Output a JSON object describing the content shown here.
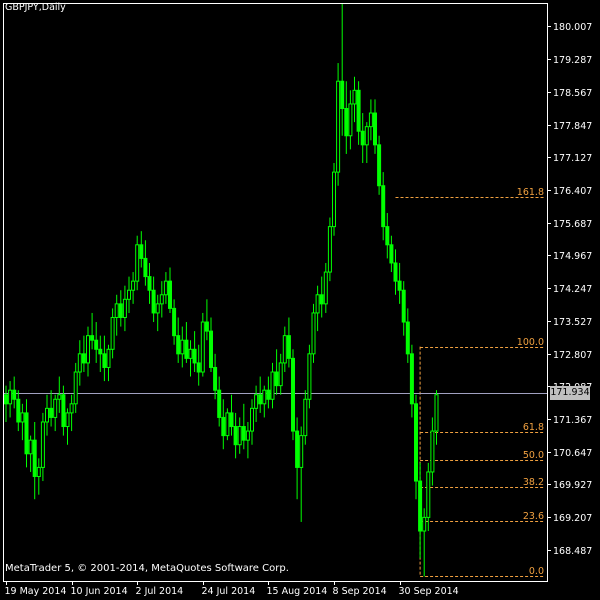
{
  "window": {
    "symbol_title": "GBPJPY,Daily",
    "copyright": "MetaTrader 5, © 2001-2014, MetaQuotes Software Corp.",
    "current_price": "171.934"
  },
  "colors": {
    "background": "#000000",
    "frame": "#ffffff",
    "candles": "#00ff00",
    "fibo": "#f0a040",
    "price_line": "#a0a0c0",
    "price_box_bg": "#c0c0c0"
  },
  "chart_data": {
    "type": "candlestick",
    "title": "GBPJPY,Daily",
    "ylim": [
      167.8,
      180.5
    ],
    "y_ticks": [
      "180.007",
      "179.287",
      "178.567",
      "177.847",
      "177.127",
      "176.407",
      "175.687",
      "174.967",
      "174.247",
      "173.527",
      "172.807",
      "172.087",
      "171.367",
      "170.647",
      "169.927",
      "169.207",
      "168.487"
    ],
    "y_tick_values": [
      180.007,
      179.287,
      178.567,
      177.847,
      177.127,
      176.407,
      175.687,
      174.967,
      174.247,
      173.527,
      172.807,
      172.087,
      171.367,
      170.647,
      169.927,
      169.207,
      168.487
    ],
    "x_labels": [
      "19 May 2014",
      "10 Jun 2014",
      "2 Jul 2014",
      "24 Jul 2014",
      "15 Aug 2014",
      "8 Sep 2014",
      "30 Sep 2014"
    ],
    "x_label_index": [
      0,
      16,
      32,
      48,
      64,
      80,
      96
    ],
    "current_price": 171.934,
    "fibonacci": {
      "levels": [
        {
          "label": "161.8",
          "price": 176.26,
          "start_index": 95
        },
        {
          "label": "100.0",
          "price": 172.96,
          "start_index": 101
        },
        {
          "label": "61.8",
          "price": 171.07,
          "start_index": 101
        },
        {
          "label": "50.0",
          "price": 170.47,
          "start_index": 101
        },
        {
          "label": "38.2",
          "price": 169.86,
          "start_index": 101
        },
        {
          "label": "23.6",
          "price": 169.12,
          "start_index": 101
        },
        {
          "label": "0.0",
          "price": 167.92,
          "start_index": 101
        }
      ]
    },
    "candles": [
      [
        171.9,
        172.1,
        171.3,
        171.7
      ],
      [
        171.7,
        172.2,
        171.4,
        172.0
      ],
      [
        172.0,
        172.3,
        171.6,
        171.8
      ],
      [
        171.8,
        172.0,
        171.1,
        171.3
      ],
      [
        171.3,
        171.7,
        170.9,
        171.5
      ],
      [
        171.5,
        171.8,
        170.3,
        170.6
      ],
      [
        170.6,
        171.0,
        170.2,
        170.9
      ],
      [
        170.9,
        171.3,
        169.6,
        170.1
      ],
      [
        170.1,
        170.5,
        169.7,
        170.3
      ],
      [
        170.3,
        171.5,
        170.0,
        171.3
      ],
      [
        171.3,
        171.9,
        171.0,
        171.6
      ],
      [
        171.6,
        172.0,
        171.2,
        171.4
      ],
      [
        171.4,
        171.9,
        171.1,
        171.8
      ],
      [
        171.8,
        172.3,
        171.5,
        171.9
      ],
      [
        171.9,
        172.1,
        171.0,
        171.2
      ],
      [
        171.2,
        171.6,
        170.8,
        171.5
      ],
      [
        171.5,
        171.9,
        171.1,
        171.7
      ],
      [
        171.7,
        172.6,
        171.5,
        172.4
      ],
      [
        172.4,
        173.1,
        172.1,
        172.8
      ],
      [
        172.8,
        173.2,
        172.4,
        172.6
      ],
      [
        172.6,
        173.4,
        172.3,
        173.2
      ],
      [
        173.2,
        173.7,
        172.9,
        173.1
      ],
      [
        173.1,
        173.5,
        172.6,
        172.9
      ],
      [
        172.9,
        173.2,
        172.4,
        172.8
      ],
      [
        172.8,
        173.2,
        172.2,
        172.5
      ],
      [
        172.5,
        173.0,
        172.2,
        172.9
      ],
      [
        172.9,
        173.8,
        172.7,
        173.6
      ],
      [
        173.6,
        174.1,
        173.2,
        173.9
      ],
      [
        173.9,
        174.2,
        173.4,
        173.6
      ],
      [
        173.6,
        174.3,
        173.3,
        174.0
      ],
      [
        174.0,
        174.5,
        173.7,
        174.2
      ],
      [
        174.2,
        174.6,
        173.9,
        174.4
      ],
      [
        174.4,
        175.4,
        174.2,
        175.2
      ],
      [
        175.2,
        175.5,
        174.7,
        174.9
      ],
      [
        174.9,
        175.3,
        174.3,
        174.5
      ],
      [
        174.5,
        174.8,
        173.9,
        174.2
      ],
      [
        174.2,
        174.5,
        173.5,
        173.7
      ],
      [
        173.7,
        174.1,
        173.3,
        173.9
      ],
      [
        173.9,
        174.4,
        173.6,
        174.1
      ],
      [
        174.1,
        174.6,
        173.9,
        174.4
      ],
      [
        174.4,
        174.7,
        173.7,
        173.8
      ],
      [
        173.8,
        174.0,
        173.0,
        173.2
      ],
      [
        173.2,
        173.6,
        172.6,
        172.8
      ],
      [
        172.8,
        173.4,
        172.5,
        173.1
      ],
      [
        173.1,
        173.5,
        172.6,
        172.7
      ],
      [
        172.7,
        173.1,
        172.3,
        172.9
      ],
      [
        172.9,
        173.3,
        172.4,
        172.6
      ],
      [
        172.6,
        173.0,
        172.1,
        172.4
      ],
      [
        172.4,
        173.7,
        172.3,
        173.5
      ],
      [
        173.5,
        174.0,
        173.1,
        173.3
      ],
      [
        173.3,
        173.6,
        172.4,
        172.5
      ],
      [
        172.5,
        172.8,
        171.8,
        172.0
      ],
      [
        172.0,
        172.3,
        171.2,
        171.4
      ],
      [
        171.4,
        171.8,
        170.7,
        171.0
      ],
      [
        171.0,
        171.6,
        170.9,
        171.5
      ],
      [
        171.5,
        171.9,
        171.0,
        171.2
      ],
      [
        171.2,
        171.5,
        170.5,
        170.8
      ],
      [
        170.8,
        171.4,
        170.6,
        171.2
      ],
      [
        171.2,
        171.7,
        170.7,
        170.9
      ],
      [
        170.9,
        171.3,
        170.5,
        171.1
      ],
      [
        171.1,
        171.8,
        170.8,
        171.6
      ],
      [
        171.6,
        172.1,
        171.3,
        171.9
      ],
      [
        171.9,
        172.3,
        171.5,
        171.7
      ],
      [
        171.7,
        172.1,
        171.4,
        172.0
      ],
      [
        172.0,
        172.3,
        171.6,
        171.8
      ],
      [
        171.8,
        172.6,
        171.6,
        172.4
      ],
      [
        172.4,
        172.9,
        171.9,
        172.1
      ],
      [
        172.1,
        172.8,
        171.9,
        172.6
      ],
      [
        172.6,
        173.4,
        172.4,
        173.2
      ],
      [
        173.2,
        173.6,
        172.5,
        172.7
      ],
      [
        172.7,
        172.9,
        170.9,
        171.1
      ],
      [
        171.1,
        171.4,
        169.6,
        170.3
      ],
      [
        170.3,
        171.2,
        169.1,
        171.0
      ],
      [
        171.0,
        172.0,
        170.8,
        171.8
      ],
      [
        171.8,
        173.0,
        171.6,
        172.8
      ],
      [
        172.8,
        173.9,
        172.6,
        173.7
      ],
      [
        173.7,
        174.3,
        173.3,
        174.1
      ],
      [
        174.1,
        174.5,
        173.6,
        173.9
      ],
      [
        173.9,
        174.8,
        173.7,
        174.6
      ],
      [
        174.6,
        175.8,
        174.4,
        175.6
      ],
      [
        175.6,
        177.0,
        175.4,
        176.8
      ],
      [
        176.8,
        179.2,
        176.5,
        178.8
      ],
      [
        178.8,
        180.5,
        177.6,
        178.2
      ],
      [
        178.2,
        178.8,
        177.2,
        177.6
      ],
      [
        177.6,
        178.6,
        177.3,
        178.3
      ],
      [
        178.3,
        178.9,
        177.9,
        178.6
      ],
      [
        178.6,
        178.8,
        177.4,
        177.7
      ],
      [
        177.7,
        178.1,
        177.0,
        177.4
      ],
      [
        177.4,
        177.9,
        177.0,
        177.8
      ],
      [
        177.8,
        178.4,
        177.5,
        178.1
      ],
      [
        178.1,
        178.4,
        177.2,
        177.4
      ],
      [
        177.4,
        177.6,
        176.3,
        176.5
      ],
      [
        176.5,
        176.8,
        175.3,
        175.6
      ],
      [
        175.6,
        175.9,
        174.9,
        175.2
      ],
      [
        175.2,
        175.4,
        174.6,
        174.8
      ],
      [
        174.8,
        175.1,
        174.1,
        174.4
      ],
      [
        174.4,
        174.8,
        173.9,
        174.2
      ],
      [
        174.2,
        174.4,
        173.2,
        173.5
      ],
      [
        173.5,
        173.8,
        172.6,
        172.8
      ],
      [
        172.8,
        173.0,
        171.4,
        171.7
      ],
      [
        171.7,
        171.9,
        169.6,
        170.0
      ],
      [
        170.0,
        170.4,
        168.3,
        168.9
      ],
      [
        168.9,
        169.4,
        167.9,
        169.2
      ],
      [
        169.2,
        170.4,
        168.9,
        170.2
      ],
      [
        170.2,
        171.4,
        169.9,
        171.1
      ],
      [
        171.1,
        172.0,
        170.8,
        171.9
      ]
    ]
  }
}
